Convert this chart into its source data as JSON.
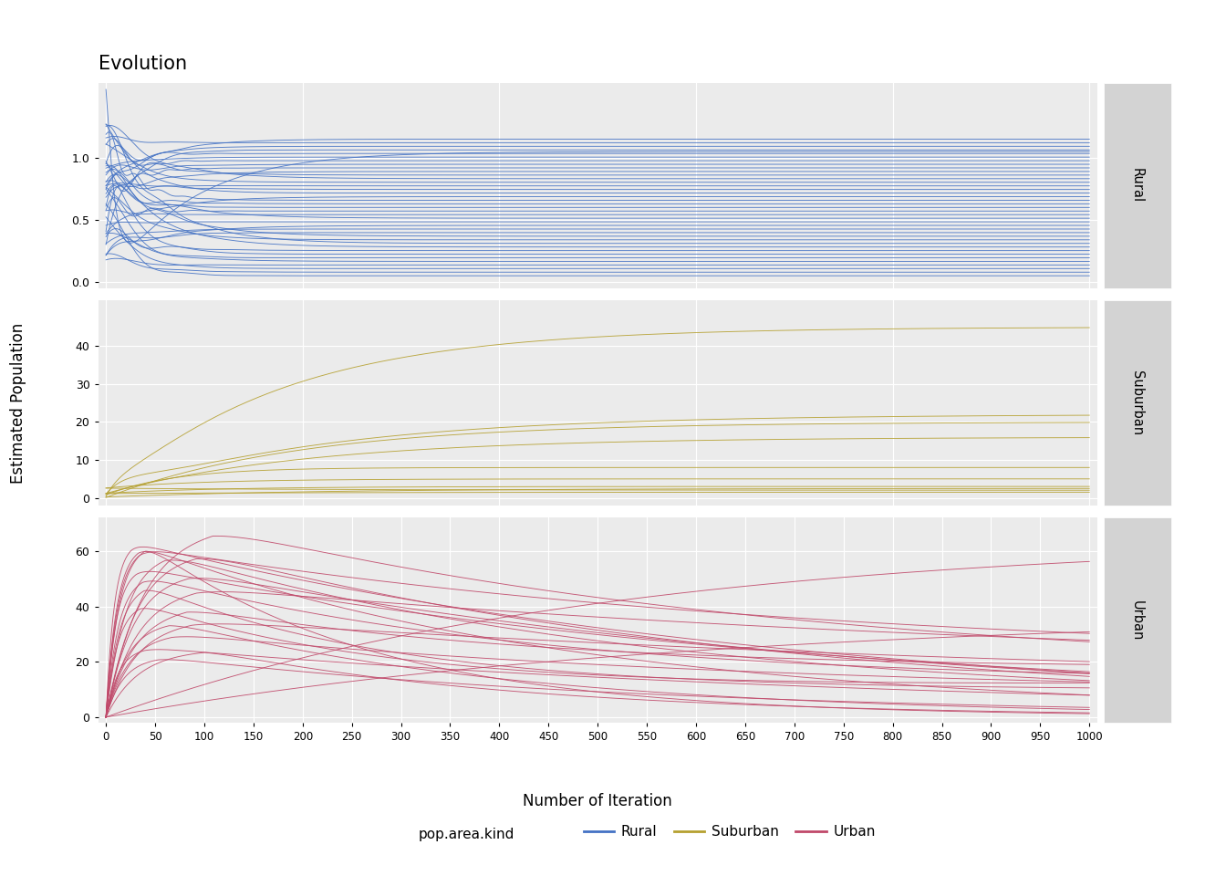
{
  "title": "Evolution",
  "xlabel": "Number of Iteration",
  "ylabel": "Estimated Population",
  "x_ticks": [
    0,
    50,
    100,
    150,
    200,
    250,
    300,
    350,
    400,
    450,
    500,
    550,
    600,
    650,
    700,
    750,
    800,
    850,
    900,
    950,
    1000
  ],
  "x_max": 1000,
  "panels": [
    "Rural",
    "Suburban",
    "Urban"
  ],
  "colors": {
    "Rural": "#4472C4",
    "Suburban": "#B5A030",
    "Urban": "#C0496A"
  },
  "rural_ylim": [
    -0.05,
    1.6
  ],
  "rural_yticks": [
    0.0,
    0.5,
    1.0
  ],
  "suburban_ylim": [
    -2,
    52
  ],
  "suburban_yticks": [
    0,
    10,
    20,
    30,
    40
  ],
  "urban_ylim": [
    -2,
    72
  ],
  "urban_yticks": [
    0,
    20,
    40,
    60
  ],
  "background_color": "#EBEBEB",
  "panel_label_bg": "#D3D3D3",
  "grid_color": "white",
  "n_rural": 40,
  "n_suburban": 10,
  "n_urban": 22,
  "seed": 42
}
